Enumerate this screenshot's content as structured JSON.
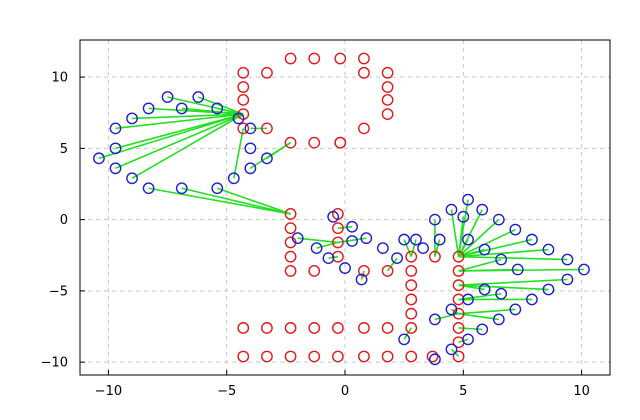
{
  "chart_data": {
    "type": "scatter",
    "title": "",
    "xlabel": "",
    "ylabel": "",
    "xlim": [
      -11.2,
      11.2
    ],
    "ylim": [
      -10.9,
      12.6
    ],
    "grid": true,
    "xticks": [
      -10,
      -5,
      0,
      5,
      10
    ],
    "yticks": [
      -10,
      -5,
      0,
      5,
      10
    ],
    "xtick_labels": [
      "−10",
      "−5",
      "0",
      "5",
      "10"
    ],
    "ytick_labels": [
      "−10",
      "−5",
      "0",
      "5",
      "10"
    ],
    "colors": {
      "red_series": "#e31a1c",
      "blue_series": "#1f1fd0",
      "lines": "#22e022",
      "grid": "#c8c8c8"
    },
    "series": [
      {
        "marker": "circle-open",
        "color": "#e31a1c",
        "points": [
          [
            -2.3,
            11.3
          ],
          [
            -1.3,
            11.3
          ],
          [
            -0.2,
            11.3
          ],
          [
            0.8,
            11.3
          ],
          [
            -4.3,
            10.3
          ],
          [
            -3.3,
            10.3
          ],
          [
            0.8,
            10.3
          ],
          [
            1.8,
            10.3
          ],
          [
            -4.3,
            9.3
          ],
          [
            1.8,
            9.3
          ],
          [
            -4.3,
            8.4
          ],
          [
            1.8,
            8.4
          ],
          [
            -4.3,
            7.4
          ],
          [
            1.8,
            7.4
          ],
          [
            -4.3,
            6.4
          ],
          [
            -3.3,
            6.4
          ],
          [
            0.8,
            6.4
          ],
          [
            -2.3,
            5.4
          ],
          [
            -1.3,
            5.4
          ],
          [
            -0.2,
            5.4
          ],
          [
            -0.2,
            5.4
          ],
          [
            -2.3,
            0.4
          ],
          [
            -0.3,
            0.4
          ],
          [
            -2.3,
            -0.6
          ],
          [
            -0.3,
            -0.6
          ],
          [
            -2.3,
            -1.6
          ],
          [
            -0.3,
            -1.6
          ],
          [
            -2.3,
            -2.6
          ],
          [
            -0.3,
            -2.6
          ],
          [
            2.8,
            -2.6
          ],
          [
            3.8,
            -2.6
          ],
          [
            4.8,
            -2.6
          ],
          [
            -2.3,
            -3.6
          ],
          [
            -1.3,
            -3.6
          ],
          [
            0.8,
            -3.6
          ],
          [
            1.8,
            -3.6
          ],
          [
            2.8,
            -3.6
          ],
          [
            4.8,
            -3.6
          ],
          [
            2.8,
            -4.6
          ],
          [
            4.8,
            -4.6
          ],
          [
            2.8,
            -5.6
          ],
          [
            4.8,
            -5.6
          ],
          [
            2.8,
            -6.6
          ],
          [
            4.8,
            -6.6
          ],
          [
            -4.3,
            -7.6
          ],
          [
            -3.3,
            -7.6
          ],
          [
            -2.3,
            -7.6
          ],
          [
            -1.3,
            -7.6
          ],
          [
            -0.3,
            -7.6
          ],
          [
            0.8,
            -7.6
          ],
          [
            1.8,
            -7.6
          ],
          [
            2.8,
            -7.6
          ],
          [
            4.8,
            -7.6
          ],
          [
            4.8,
            -8.6
          ],
          [
            -4.3,
            -9.6
          ],
          [
            -3.3,
            -9.6
          ],
          [
            -2.3,
            -9.6
          ],
          [
            -1.3,
            -9.6
          ],
          [
            -0.3,
            -9.6
          ],
          [
            0.8,
            -9.6
          ],
          [
            1.8,
            -9.6
          ],
          [
            2.8,
            -9.6
          ],
          [
            3.7,
            -9.6
          ],
          [
            4.8,
            -9.6
          ]
        ]
      },
      {
        "marker": "circle-open",
        "color": "#1f1fd0",
        "points": [
          [
            -7.5,
            8.6
          ],
          [
            -6.2,
            8.6
          ],
          [
            -8.3,
            7.8
          ],
          [
            -6.9,
            7.8
          ],
          [
            -5.4,
            7.8
          ],
          [
            -9.0,
            7.1
          ],
          [
            -4.5,
            7.1
          ],
          [
            -9.7,
            6.4
          ],
          [
            -4.0,
            6.4
          ],
          [
            -9.7,
            5.0
          ],
          [
            -4.0,
            5.0
          ],
          [
            -3.3,
            4.3
          ],
          [
            -10.4,
            4.3
          ],
          [
            -9.7,
            3.6
          ],
          [
            -4.0,
            3.6
          ],
          [
            -9.0,
            2.9
          ],
          [
            -4.7,
            2.9
          ],
          [
            -8.3,
            2.2
          ],
          [
            -6.9,
            2.2
          ],
          [
            -5.4,
            2.2
          ],
          [
            -2.0,
            -1.3
          ],
          [
            -1.2,
            -2.0
          ],
          [
            -0.5,
            0.2
          ],
          [
            0.3,
            -0.5
          ],
          [
            0.3,
            -1.5
          ],
          [
            0.9,
            -1.3
          ],
          [
            -0.7,
            -2.7
          ],
          [
            0.0,
            -3.4
          ],
          [
            0.7,
            -4.2
          ],
          [
            1.6,
            -2.0
          ],
          [
            2.2,
            -2.7
          ],
          [
            2.5,
            -1.4
          ],
          [
            3.0,
            -1.4
          ],
          [
            3.3,
            -2.0
          ],
          [
            4.0,
            -1.4
          ],
          [
            3.8,
            0.0
          ],
          [
            4.5,
            0.7
          ],
          [
            5.0,
            0.2
          ],
          [
            5.2,
            1.4
          ],
          [
            5.2,
            -1.4
          ],
          [
            5.8,
            0.7
          ],
          [
            6.5,
            0.0
          ],
          [
            7.2,
            -0.7
          ],
          [
            7.9,
            -1.4
          ],
          [
            8.6,
            -2.1
          ],
          [
            9.4,
            -2.8
          ],
          [
            5.9,
            -2.1
          ],
          [
            6.6,
            -2.8
          ],
          [
            7.3,
            -3.5
          ],
          [
            10.1,
            -3.5
          ],
          [
            9.4,
            -4.2
          ],
          [
            8.6,
            -4.9
          ],
          [
            5.9,
            -4.9
          ],
          [
            6.6,
            -5.2
          ],
          [
            7.9,
            -5.6
          ],
          [
            7.2,
            -6.3
          ],
          [
            6.5,
            -7.0
          ],
          [
            5.8,
            -7.7
          ],
          [
            5.2,
            -5.6
          ],
          [
            4.5,
            -6.3
          ],
          [
            3.8,
            -7.0
          ],
          [
            2.5,
            -8.4
          ],
          [
            5.2,
            -8.4
          ],
          [
            4.5,
            -9.1
          ],
          [
            3.8,
            -9.8
          ]
        ]
      }
    ],
    "segments": [
      [
        -4.3,
        7.4,
        -7.5,
        8.6
      ],
      [
        -4.3,
        7.4,
        -6.2,
        8.6
      ],
      [
        -4.3,
        7.4,
        -8.3,
        7.8
      ],
      [
        -4.3,
        7.4,
        -6.9,
        7.8
      ],
      [
        -4.3,
        7.4,
        -5.4,
        7.8
      ],
      [
        -4.3,
        7.4,
        -9.0,
        7.1
      ],
      [
        -4.3,
        7.4,
        -4.5,
        7.1
      ],
      [
        -4.3,
        7.4,
        -9.7,
        6.4
      ],
      [
        -4.3,
        7.4,
        -9.7,
        5.0
      ],
      [
        -4.3,
        7.4,
        -9.7,
        3.6
      ],
      [
        -4.3,
        7.4,
        -10.4,
        4.3
      ],
      [
        -4.3,
        7.4,
        -9.0,
        2.9
      ],
      [
        -3.3,
        6.4,
        -4.0,
        6.4
      ],
      [
        -2.3,
        5.4,
        -4.0,
        3.6
      ],
      [
        -2.3,
        5.4,
        -3.3,
        4.3
      ],
      [
        -4.3,
        6.4,
        -4.7,
        2.9
      ],
      [
        -2.3,
        0.4,
        -8.3,
        2.2
      ],
      [
        -2.3,
        0.4,
        -6.9,
        2.2
      ],
      [
        -2.3,
        0.4,
        -5.4,
        2.2
      ],
      [
        -0.3,
        -1.6,
        -2.0,
        -1.3
      ],
      [
        -0.3,
        -1.6,
        -1.2,
        -2.0
      ],
      [
        -0.3,
        -0.6,
        0.3,
        -0.5
      ],
      [
        -0.3,
        -1.6,
        0.9,
        -1.3
      ],
      [
        -0.3,
        -2.6,
        -0.7,
        -2.7
      ],
      [
        0.8,
        -3.6,
        0.7,
        -4.2
      ],
      [
        1.8,
        -3.6,
        2.2,
        -2.7
      ],
      [
        2.8,
        -2.6,
        2.5,
        -1.4
      ],
      [
        2.8,
        -2.6,
        3.0,
        -1.4
      ],
      [
        3.8,
        -2.6,
        4.0,
        -1.4
      ],
      [
        3.8,
        -2.6,
        3.8,
        0.0
      ],
      [
        4.8,
        -2.6,
        4.5,
        0.7
      ],
      [
        4.8,
        -2.6,
        5.0,
        0.2
      ],
      [
        4.8,
        -2.6,
        5.2,
        1.4
      ],
      [
        4.8,
        -2.6,
        5.2,
        -1.4
      ],
      [
        4.8,
        -2.6,
        5.8,
        0.7
      ],
      [
        4.8,
        -2.6,
        6.5,
        0.0
      ],
      [
        4.8,
        -2.6,
        7.2,
        -0.7
      ],
      [
        4.8,
        -2.6,
        7.9,
        -1.4
      ],
      [
        4.8,
        -2.6,
        8.6,
        -2.1
      ],
      [
        4.8,
        -2.6,
        9.4,
        -2.8
      ],
      [
        4.8,
        -2.6,
        5.9,
        -2.1
      ],
      [
        4.8,
        -3.6,
        6.6,
        -2.8
      ],
      [
        4.8,
        -3.6,
        10.1,
        -3.5
      ],
      [
        4.8,
        -3.6,
        7.3,
        -3.5
      ],
      [
        4.8,
        -4.6,
        9.4,
        -4.2
      ],
      [
        4.8,
        -4.6,
        8.6,
        -4.9
      ],
      [
        4.8,
        -4.6,
        5.9,
        -4.9
      ],
      [
        4.8,
        -5.6,
        7.9,
        -5.6
      ],
      [
        4.8,
        -5.6,
        6.6,
        -5.2
      ],
      [
        4.8,
        -6.6,
        7.2,
        -6.3
      ],
      [
        4.8,
        -6.6,
        6.5,
        -7.0
      ],
      [
        4.8,
        -7.6,
        5.8,
        -7.7
      ],
      [
        4.8,
        -5.6,
        5.2,
        -5.6
      ],
      [
        4.8,
        -6.6,
        4.5,
        -6.3
      ],
      [
        4.8,
        -6.6,
        3.8,
        -7.0
      ],
      [
        2.8,
        -7.6,
        2.5,
        -8.4
      ],
      [
        4.8,
        -8.6,
        5.2,
        -8.4
      ],
      [
        4.8,
        -9.6,
        4.5,
        -9.1
      ]
    ]
  }
}
